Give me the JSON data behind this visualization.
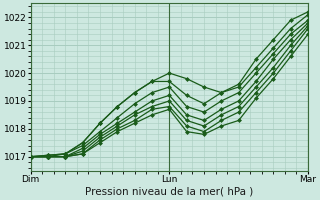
{
  "title": "Pression niveau de la mer( hPa )",
  "bg_color": "#cde8e0",
  "grid_color": "#a8ccbf",
  "line_color": "#1a5c1a",
  "marker": "D",
  "markersize": 2.5,
  "linewidth": 0.9,
  "xlim": [
    0,
    48
  ],
  "ylim": [
    1016.5,
    1022.5
  ],
  "yticks": [
    1017,
    1018,
    1019,
    1020,
    1021,
    1022
  ],
  "xtick_positions": [
    0,
    24,
    48
  ],
  "xtick_labels": [
    "Dim",
    "Lun",
    "Mar"
  ],
  "vline_color": "#3a6a3a",
  "series": [
    {
      "x": [
        0,
        3,
        6,
        9,
        12,
        15,
        18,
        21,
        24,
        27,
        30,
        33,
        36,
        39,
        42,
        45,
        48
      ],
      "y": [
        1017.0,
        1017.05,
        1017.1,
        1017.5,
        1018.2,
        1018.8,
        1019.3,
        1019.7,
        1020.0,
        1019.8,
        1019.5,
        1019.3,
        1019.6,
        1020.5,
        1021.2,
        1021.9,
        1022.2
      ]
    },
    {
      "x": [
        0,
        3,
        6,
        9,
        12,
        15,
        18,
        21,
        24,
        27,
        30,
        33,
        36,
        39,
        42,
        45,
        48
      ],
      "y": [
        1017.0,
        1017.05,
        1017.1,
        1017.5,
        1018.2,
        1018.8,
        1019.3,
        1019.7,
        1019.7,
        1019.2,
        1018.9,
        1019.3,
        1019.5,
        1020.2,
        1020.9,
        1021.6,
        1022.1
      ]
    },
    {
      "x": [
        0,
        3,
        6,
        9,
        12,
        15,
        18,
        21,
        24,
        27,
        30,
        33,
        36,
        39,
        42,
        45,
        48
      ],
      "y": [
        1017.0,
        1017.0,
        1017.1,
        1017.4,
        1017.9,
        1018.4,
        1018.9,
        1019.3,
        1019.5,
        1018.8,
        1018.6,
        1019.0,
        1019.3,
        1020.0,
        1020.7,
        1021.4,
        1021.9
      ]
    },
    {
      "x": [
        0,
        3,
        6,
        9,
        12,
        15,
        18,
        21,
        24,
        27,
        30,
        33,
        36,
        39,
        42,
        45,
        48
      ],
      "y": [
        1017.0,
        1017.0,
        1017.0,
        1017.3,
        1017.8,
        1018.2,
        1018.6,
        1019.0,
        1019.2,
        1018.5,
        1018.3,
        1018.7,
        1019.0,
        1019.7,
        1020.5,
        1021.2,
        1021.8
      ]
    },
    {
      "x": [
        0,
        3,
        6,
        9,
        12,
        15,
        18,
        21,
        24,
        27,
        30,
        33,
        36,
        39,
        42,
        45,
        48
      ],
      "y": [
        1017.0,
        1017.0,
        1017.0,
        1017.2,
        1017.7,
        1018.1,
        1018.5,
        1018.8,
        1019.0,
        1018.3,
        1018.1,
        1018.5,
        1018.8,
        1019.5,
        1020.2,
        1021.0,
        1021.7
      ]
    },
    {
      "x": [
        0,
        3,
        6,
        9,
        12,
        15,
        18,
        21,
        24,
        27,
        30,
        33,
        36,
        39,
        42,
        45,
        48
      ],
      "y": [
        1017.0,
        1017.0,
        1017.0,
        1017.1,
        1017.6,
        1018.0,
        1018.3,
        1018.7,
        1018.8,
        1018.1,
        1017.9,
        1018.3,
        1018.6,
        1019.3,
        1020.0,
        1020.8,
        1021.6
      ]
    },
    {
      "x": [
        0,
        3,
        6,
        9,
        12,
        15,
        18,
        21,
        24,
        27,
        30,
        33,
        36,
        39,
        42,
        45,
        48
      ],
      "y": [
        1017.0,
        1017.0,
        1017.0,
        1017.1,
        1017.5,
        1017.9,
        1018.2,
        1018.5,
        1018.7,
        1017.9,
        1017.8,
        1018.1,
        1018.3,
        1019.1,
        1019.8,
        1020.6,
        1021.4
      ]
    }
  ]
}
